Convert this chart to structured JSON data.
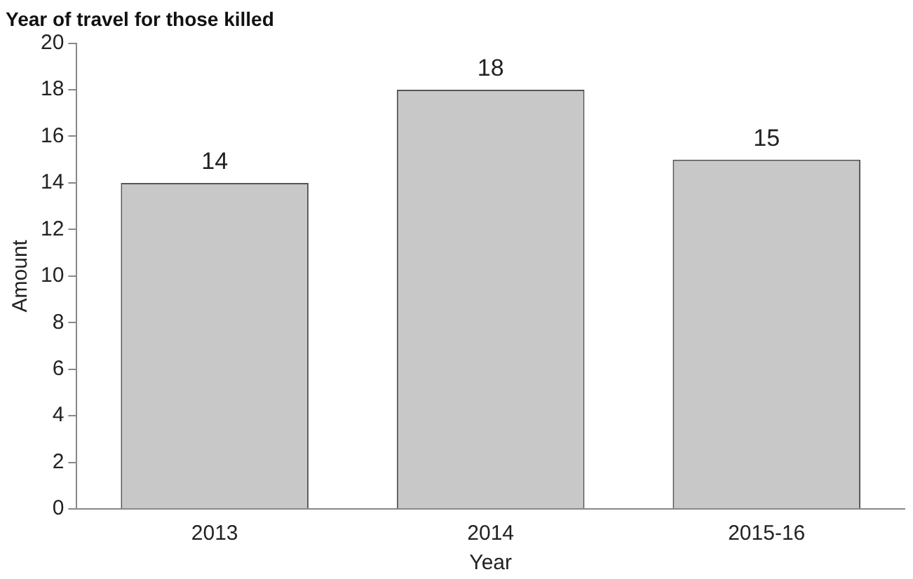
{
  "chart_data": {
    "type": "bar",
    "title": "Year of travel for those killed",
    "xlabel": "Year",
    "ylabel": "Amount",
    "categories": [
      "2013",
      "2014",
      "2015-16"
    ],
    "values": [
      14,
      18,
      15
    ],
    "color": "#c8c8c8",
    "ylim": [
      0,
      20
    ],
    "yticks": [
      0,
      2,
      4,
      6,
      8,
      10,
      12,
      14,
      16,
      18,
      20
    ],
    "grid": false,
    "legend": false,
    "data_labels": true
  }
}
